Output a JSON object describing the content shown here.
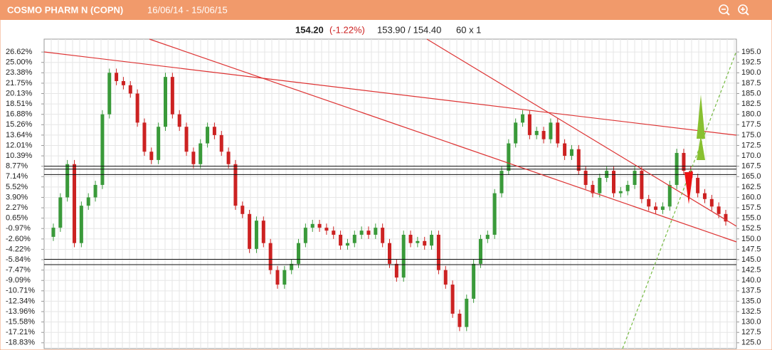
{
  "header": {
    "title": "COSMO PHARM N (COPN)",
    "period": "16/06/14 - 15/06/15"
  },
  "quote": {
    "last": "154.20",
    "change": "(-1.22%)",
    "bid_ask": "153.90 / 154.40",
    "interval": "60 x 1"
  },
  "chart_data": {
    "type": "candlestick",
    "up_color": "#3a9a3a",
    "down_color": "#cc2222",
    "grid": true,
    "open": [
      150.5,
      152.7,
      160,
      168,
      149,
      158,
      160,
      163,
      180,
      190,
      188,
      187,
      185,
      178,
      171,
      169,
      177,
      189,
      180,
      177,
      171,
      168,
      173,
      177,
      175,
      171,
      168,
      158,
      156,
      147.6,
      154.4,
      149,
      142.5,
      139,
      142.5,
      144,
      149,
      152.7,
      153.6,
      152.7,
      152,
      151,
      148.4,
      149,
      151,
      152,
      151,
      152.7,
      149,
      144,
      140.7,
      151,
      149,
      149.5,
      148.4,
      151,
      142.5,
      139,
      132,
      128.8,
      135.6,
      144,
      150,
      151,
      161,
      166.4,
      173,
      178,
      180,
      175,
      176,
      174,
      178,
      173,
      170,
      171.6,
      166.4,
      163,
      161,
      164.7,
      166.4,
      161,
      161.5,
      163,
      166.4,
      159.6,
      157.8,
      157,
      157.8,
      163,
      170.7,
      166.4,
      164.7,
      161,
      159.6,
      157.8,
      156
    ],
    "high": [
      153.7,
      161,
      169,
      169,
      159,
      161,
      164,
      181,
      191,
      191,
      189,
      188,
      186,
      179,
      172,
      178,
      190,
      190,
      181,
      178,
      172,
      174,
      178,
      178,
      176,
      172,
      169,
      159,
      157,
      155.4,
      155.4,
      150,
      143.5,
      143.5,
      145,
      150,
      153.7,
      154.6,
      154.6,
      153.7,
      153,
      152,
      150,
      152,
      153,
      153,
      153.7,
      153.7,
      150,
      145,
      152,
      152,
      150.5,
      150.5,
      152,
      152,
      143.5,
      140,
      133,
      136.6,
      145,
      151,
      152,
      162,
      167.4,
      174,
      179,
      181,
      181,
      177,
      177,
      179,
      179,
      174,
      172.6,
      172.6,
      167.4,
      164,
      165.7,
      167.4,
      167.4,
      162.5,
      164,
      167.4,
      167.4,
      160.6,
      158.8,
      158.8,
      164,
      171.7,
      171.7,
      167.4,
      165.7,
      162,
      160.6,
      158.8,
      157
    ],
    "low": [
      149.5,
      151.7,
      159,
      148,
      148,
      157,
      159,
      162,
      179,
      187,
      186,
      184,
      177,
      170,
      168,
      168,
      176,
      179,
      176,
      170,
      167,
      167,
      172,
      174,
      170,
      167,
      157,
      155,
      146.6,
      146.6,
      148,
      141.5,
      138,
      138,
      141.5,
      143,
      148,
      151.7,
      151.7,
      151,
      150,
      147.4,
      147.4,
      148,
      150,
      150,
      150,
      148,
      143,
      139.7,
      139.7,
      148,
      148,
      147.4,
      147.4,
      141.5,
      138,
      131,
      127.8,
      127.8,
      134.6,
      143,
      149,
      150,
      160,
      165.4,
      172,
      177,
      174,
      174,
      173,
      173,
      172,
      169,
      169,
      165.4,
      162,
      160,
      160,
      163.7,
      160,
      160,
      160.5,
      162,
      158.6,
      156.8,
      156,
      156,
      156.8,
      162,
      165.4,
      163.7,
      160,
      158.6,
      156.8,
      155,
      153.2
    ],
    "close": [
      152.7,
      160,
      168,
      149,
      158,
      160,
      163,
      180,
      190,
      188,
      187,
      185,
      178,
      171,
      169,
      177,
      189,
      180,
      177,
      171,
      168,
      173,
      177,
      175,
      171,
      168,
      158,
      156,
      147.6,
      154.4,
      149,
      142.5,
      139,
      142.5,
      144,
      149,
      152.7,
      153.6,
      152.7,
      152,
      151,
      148.4,
      149,
      151,
      152,
      151,
      152.7,
      149,
      144,
      140.7,
      151,
      149,
      149.5,
      148.4,
      151,
      142.5,
      139,
      132,
      128.8,
      135.6,
      144,
      150,
      151,
      161,
      166.4,
      173,
      178,
      180,
      175,
      176,
      174,
      178,
      173,
      170,
      171.6,
      166.4,
      163,
      161,
      164.7,
      166.4,
      161,
      161.5,
      163,
      166.4,
      159.6,
      157.8,
      157,
      157.8,
      163,
      170.7,
      166.4,
      164.7,
      161,
      159.6,
      157.8,
      156,
      154.2
    ],
    "levels": [
      167.5,
      166.8,
      165.5,
      145.1,
      143.8
    ],
    "ylim": [
      123.6,
      198.1
    ],
    "yticks": [
      {
        "value": 195,
        "label": "195.0"
      },
      {
        "value": 192.5,
        "label": "192.5"
      },
      {
        "value": 190,
        "label": "190.0"
      },
      {
        "value": 187.5,
        "label": "187.5"
      },
      {
        "value": 185,
        "label": "185.0"
      },
      {
        "value": 182.5,
        "label": "182.5"
      },
      {
        "value": 180,
        "label": "180.0"
      },
      {
        "value": 177.5,
        "label": "177.5"
      },
      {
        "value": 175,
        "label": "175.0"
      },
      {
        "value": 172.5,
        "label": "172.5"
      },
      {
        "value": 170,
        "label": "170.0"
      },
      {
        "value": 167.5,
        "label": "167.5"
      },
      {
        "value": 165,
        "label": "165.0"
      },
      {
        "value": 162.5,
        "label": "162.5"
      },
      {
        "value": 160,
        "label": "160.0"
      },
      {
        "value": 157.5,
        "label": "157.5"
      },
      {
        "value": 155,
        "label": "155.0"
      },
      {
        "value": 152.5,
        "label": "152.5"
      },
      {
        "value": 150,
        "label": "150.0"
      },
      {
        "value": 147.5,
        "label": "147.5"
      },
      {
        "value": 145,
        "label": "145.0"
      },
      {
        "value": 142.5,
        "label": "142.5"
      },
      {
        "value": 140,
        "label": "140.0"
      },
      {
        "value": 137.5,
        "label": "137.5"
      },
      {
        "value": 135,
        "label": "135.0"
      },
      {
        "value": 132.5,
        "label": "132.5"
      },
      {
        "value": 130,
        "label": "130.0"
      },
      {
        "value": 127.5,
        "label": "127.5"
      },
      {
        "value": 125,
        "label": "125.0"
      }
    ],
    "y2lim": [
      -19.74,
      28.64
    ],
    "y2ticks": [
      {
        "value": 26.62,
        "label": "26.62%"
      },
      {
        "value": 25,
        "label": "25.00%"
      },
      {
        "value": 23.38,
        "label": "23.38%"
      },
      {
        "value": 21.75,
        "label": "21.75%"
      },
      {
        "value": 20.13,
        "label": "20.13%"
      },
      {
        "value": 18.51,
        "label": "18.51%"
      },
      {
        "value": 16.88,
        "label": "16.88%"
      },
      {
        "value": 15.26,
        "label": "15.26%"
      },
      {
        "value": 13.64,
        "label": "13.64%"
      },
      {
        "value": 12.01,
        "label": "12.01%"
      },
      {
        "value": 10.39,
        "label": "10.39%"
      },
      {
        "value": 8.77,
        "label": "8.77%"
      },
      {
        "value": 7.14,
        "label": "7.14%"
      },
      {
        "value": 5.52,
        "label": "5.52%"
      },
      {
        "value": 3.9,
        "label": "3.90%"
      },
      {
        "value": 2.27,
        "label": "2.27%"
      },
      {
        "value": 0.65,
        "label": "0.65%"
      },
      {
        "value": -0.97,
        "label": "-0.97%"
      },
      {
        "value": -2.6,
        "label": "-2.60%"
      },
      {
        "value": -4.22,
        "label": "-4.22%"
      },
      {
        "value": -5.84,
        "label": "-5.84%"
      },
      {
        "value": -7.47,
        "label": "-7.47%"
      },
      {
        "value": -9.09,
        "label": "-9.09%"
      },
      {
        "value": -10.71,
        "label": "-10.71%"
      },
      {
        "value": -12.34,
        "label": "-12.34%"
      },
      {
        "value": -13.96,
        "label": "-13.96%"
      },
      {
        "value": -15.58,
        "label": "-15.58%"
      },
      {
        "value": -17.21,
        "label": "-17.21%"
      },
      {
        "value": -18.83,
        "label": "-18.83%"
      }
    ]
  }
}
